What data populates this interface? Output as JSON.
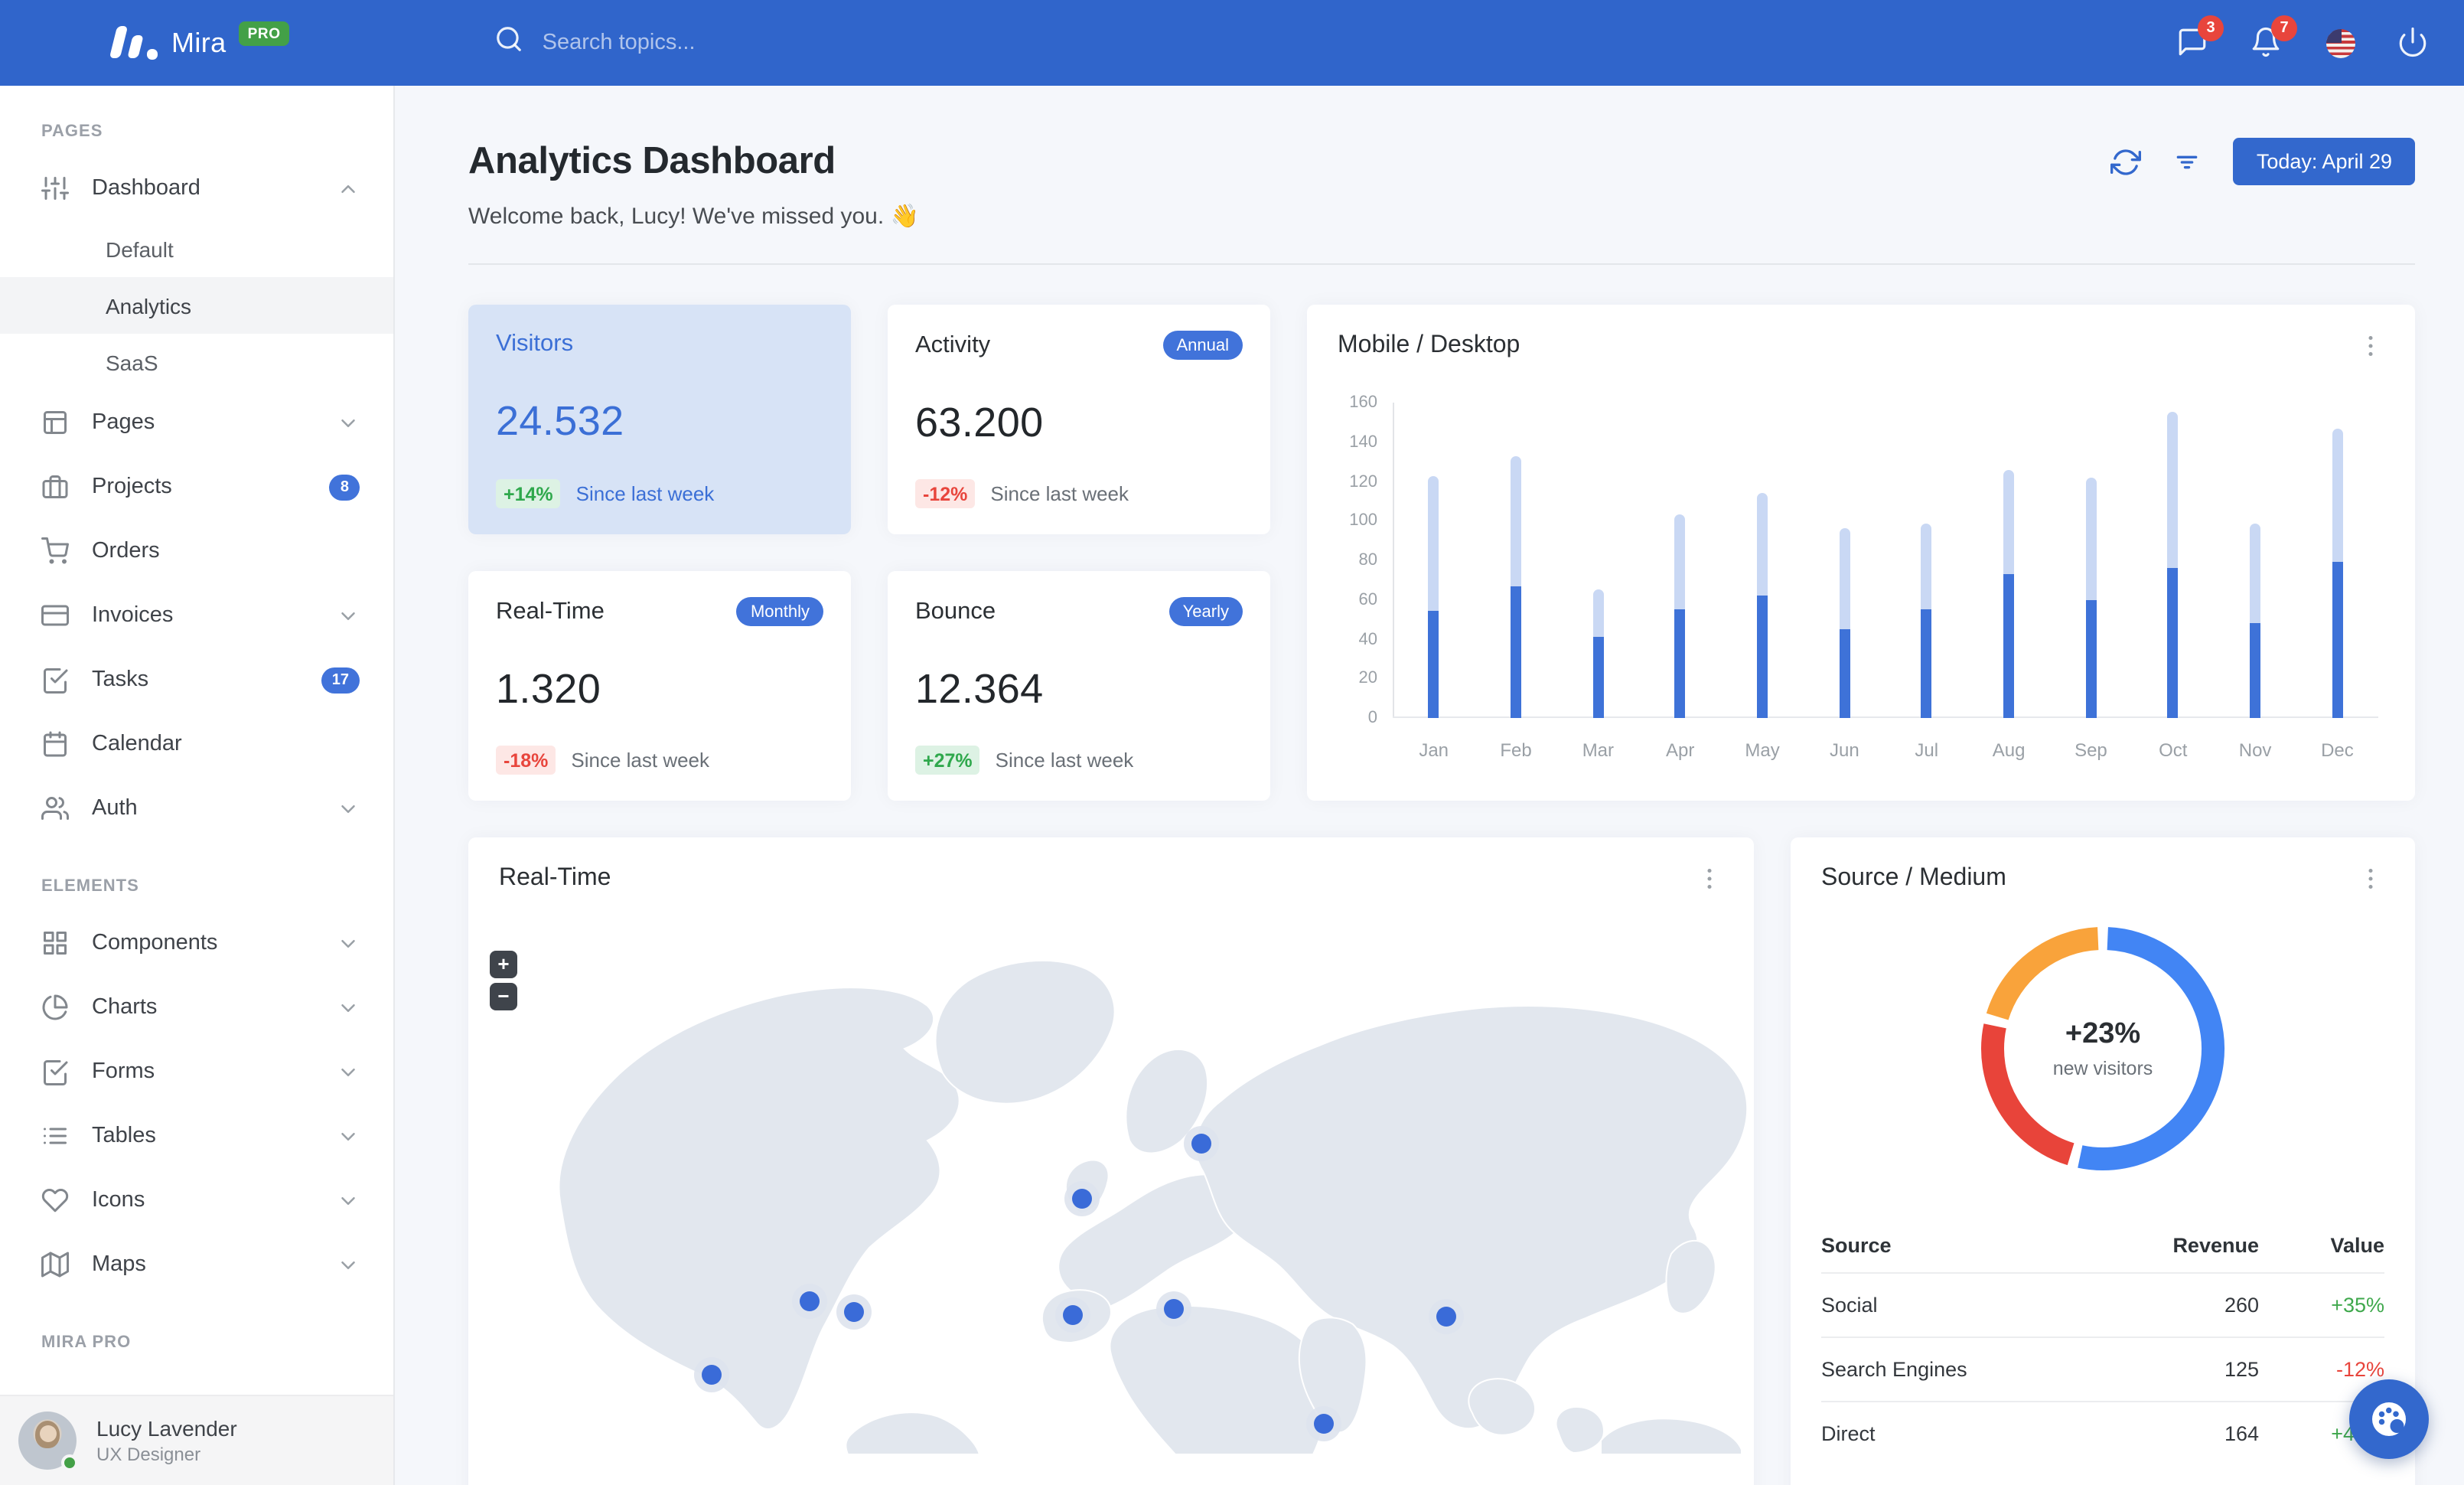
{
  "navbar": {
    "brand": "Mira",
    "brand_badge": "PRO",
    "search_placeholder": "Search topics...",
    "messages_badge": "3",
    "notifications_badge": "7",
    "accent_color": "#3065cb"
  },
  "sidebar": {
    "sections": [
      {
        "label": "PAGES",
        "items": [
          {
            "label": "Dashboard",
            "icon": "sliders-icon",
            "state": "expanded",
            "children": [
              {
                "label": "Default"
              },
              {
                "label": "Analytics",
                "active": true
              },
              {
                "label": "SaaS"
              }
            ]
          },
          {
            "label": "Pages",
            "icon": "layout-icon",
            "chevron": "down"
          },
          {
            "label": "Projects",
            "icon": "briefcase-icon",
            "badge": "8"
          },
          {
            "label": "Orders",
            "icon": "shopping-cart-icon"
          },
          {
            "label": "Invoices",
            "icon": "credit-card-icon",
            "chevron": "down"
          },
          {
            "label": "Tasks",
            "icon": "check-square-icon",
            "badge": "17"
          },
          {
            "label": "Calendar",
            "icon": "calendar-icon"
          },
          {
            "label": "Auth",
            "icon": "users-icon",
            "chevron": "down"
          }
        ]
      },
      {
        "label": "ELEMENTS",
        "items": [
          {
            "label": "Components",
            "icon": "grid-icon",
            "chevron": "down"
          },
          {
            "label": "Charts",
            "icon": "pie-chart-icon",
            "chevron": "down"
          },
          {
            "label": "Forms",
            "icon": "check-square-icon",
            "chevron": "down"
          },
          {
            "label": "Tables",
            "icon": "list-icon",
            "chevron": "down"
          },
          {
            "label": "Icons",
            "icon": "heart-icon",
            "chevron": "down"
          },
          {
            "label": "Maps",
            "icon": "map-icon",
            "chevron": "down"
          }
        ]
      },
      {
        "label": "MIRA PRO",
        "items": []
      }
    ],
    "user": {
      "name": "Lucy Lavender",
      "role": "UX Designer",
      "status": "online",
      "status_color": "#43a047"
    }
  },
  "header": {
    "title": "Analytics Dashboard",
    "welcome": "Welcome back, Lucy! We've missed you. 👋",
    "date_button": "Today: April 29"
  },
  "stats": [
    {
      "title": "Visitors",
      "value": "24.532",
      "delta": "+14%",
      "caption": "Since last week",
      "variant": "primary"
    },
    {
      "title": "Activity",
      "period_badge": "Annual",
      "value": "63.200",
      "delta": "-12%",
      "caption": "Since last week"
    },
    {
      "title": "Real-Time",
      "period_badge": "Monthly",
      "value": "1.320",
      "delta": "-18%",
      "caption": "Since last week"
    },
    {
      "title": "Bounce",
      "period_badge": "Yearly",
      "value": "12.364",
      "delta": "+27%",
      "caption": "Since last week"
    }
  ],
  "chart_data": [
    {
      "type": "bar",
      "stacked": true,
      "title": "Mobile / Desktop",
      "categories": [
        "Jan",
        "Feb",
        "Mar",
        "Apr",
        "May",
        "Jun",
        "Jul",
        "Aug",
        "Sep",
        "Oct",
        "Nov",
        "Dec"
      ],
      "series": [
        {
          "name": "Mobile",
          "color": "#3e72d8",
          "values": [
            54,
            67,
            41,
            55,
            62,
            45,
            55,
            73,
            60,
            76,
            48,
            79
          ]
        },
        {
          "name": "Desktop",
          "color": "#c9d8f4",
          "values": [
            69,
            66,
            24,
            48,
            52,
            51,
            44,
            53,
            62,
            79,
            51,
            68
          ]
        }
      ],
      "ylim": [
        0,
        160
      ],
      "yticks": [
        0,
        20,
        40,
        60,
        80,
        100,
        120,
        140,
        160
      ],
      "grid": false,
      "legend": "none"
    },
    {
      "type": "donut",
      "title": "Source / Medium",
      "center_label": "+23%",
      "center_sublabel": "new visitors",
      "segments": [
        {
          "color": "#4285f4",
          "percent": 54
        },
        {
          "color": "#e8443a",
          "percent": 25
        },
        {
          "color": "#f9a33b",
          "percent": 21
        }
      ]
    }
  ],
  "realtime_card": {
    "title": "Real-Time",
    "zoom_in": "+",
    "zoom_out": "−",
    "markers": [
      {
        "x": 18.9,
        "y": 84.9
      },
      {
        "x": 26.5,
        "y": 71.0
      },
      {
        "x": 30.0,
        "y": 73.0
      },
      {
        "x": 47.0,
        "y": 73.6
      },
      {
        "x": 47.7,
        "y": 51.6
      },
      {
        "x": 57.0,
        "y": 41.2
      },
      {
        "x": 54.9,
        "y": 72.5
      },
      {
        "x": 66.5,
        "y": 94.2
      },
      {
        "x": 76.1,
        "y": 73.9
      }
    ]
  },
  "source_card": {
    "title": "Source / Medium",
    "table": {
      "columns": [
        "Source",
        "Revenue",
        "Value"
      ],
      "rows": [
        {
          "source": "Social",
          "revenue": "260",
          "value": "+35%",
          "trend": "up"
        },
        {
          "source": "Search Engines",
          "revenue": "125",
          "value": "-12%",
          "trend": "down"
        },
        {
          "source": "Direct",
          "revenue": "164",
          "value": "+46%",
          "trend": "up"
        }
      ]
    }
  }
}
